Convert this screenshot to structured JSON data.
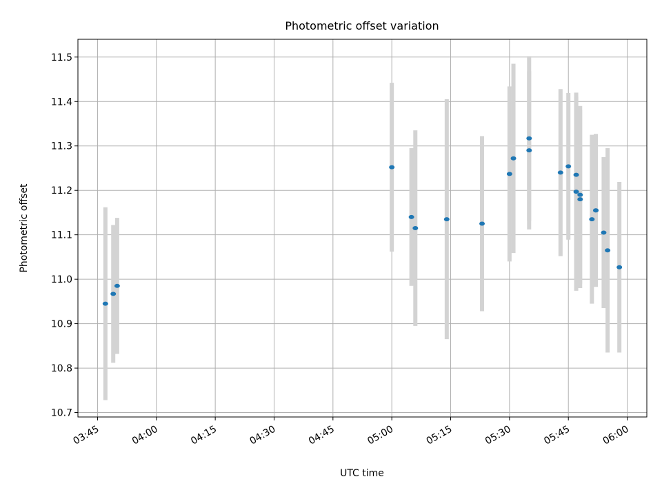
{
  "chart_data": {
    "type": "scatter",
    "title": "Photometric offset variation",
    "xlabel": "UTC time",
    "ylabel": "Photometric offset",
    "xlim": [
      "03:40",
      "06:05"
    ],
    "ylim": [
      10.69,
      11.54
    ],
    "x_ticks": [
      "03:45",
      "04:00",
      "04:15",
      "04:30",
      "04:45",
      "05:00",
      "05:15",
      "05:30",
      "05:45",
      "06:00"
    ],
    "y_ticks": [
      "10.7",
      "10.8",
      "10.9",
      "11.0",
      "11.1",
      "11.2",
      "11.3",
      "11.4",
      "11.5"
    ],
    "grid": true,
    "colors": {
      "points": "#1f77b4",
      "errorbars": "#d3d3d3",
      "grid": "#b0b0b0"
    },
    "points": [
      {
        "time": "03:47",
        "y": 10.945,
        "err": 0.217
      },
      {
        "time": "03:49",
        "y": 10.967,
        "err": 0.155
      },
      {
        "time": "03:50",
        "y": 10.985,
        "err": 0.153
      },
      {
        "time": "05:00",
        "y": 11.252,
        "err": 0.19
      },
      {
        "time": "05:05",
        "y": 11.14,
        "err": 0.155
      },
      {
        "time": "05:06",
        "y": 11.115,
        "err": 0.22
      },
      {
        "time": "05:14",
        "y": 11.135,
        "err": 0.27
      },
      {
        "time": "05:23",
        "y": 11.125,
        "err": 0.197
      },
      {
        "time": "05:30",
        "y": 11.237,
        "err": 0.197
      },
      {
        "time": "05:31",
        "y": 11.272,
        "err": 0.213
      },
      {
        "time": "05:35",
        "y": 11.317,
        "err": 0.185
      },
      {
        "time": "05:35",
        "y": 11.29,
        "err": 0.178
      },
      {
        "time": "05:43",
        "y": 11.24,
        "err": 0.188
      },
      {
        "time": "05:45",
        "y": 11.254,
        "err": 0.165
      },
      {
        "time": "05:47",
        "y": 11.235,
        "err": 0.175
      },
      {
        "time": "05:47",
        "y": 11.197,
        "err": 0.223
      },
      {
        "time": "05:48",
        "y": 11.18,
        "err": 0.2
      },
      {
        "time": "05:48",
        "y": 11.19,
        "err": 0.2
      },
      {
        "time": "05:51",
        "y": 11.135,
        "err": 0.19
      },
      {
        "time": "05:52",
        "y": 11.155,
        "err": 0.172
      },
      {
        "time": "05:52",
        "y": 11.155,
        "err": 0.172
      },
      {
        "time": "05:54",
        "y": 11.105,
        "err": 0.17
      },
      {
        "time": "05:55",
        "y": 11.065,
        "err": 0.23
      },
      {
        "time": "05:58",
        "y": 11.027,
        "err": 0.192
      }
    ]
  }
}
